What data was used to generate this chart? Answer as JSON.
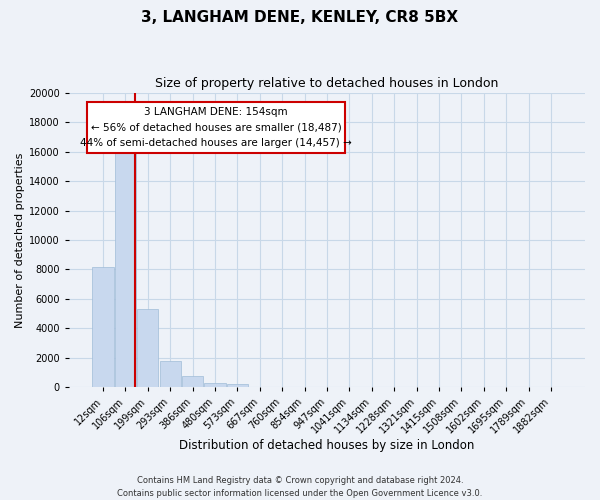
{
  "title": "3, LANGHAM DENE, KENLEY, CR8 5BX",
  "subtitle": "Size of property relative to detached houses in London",
  "xlabel": "Distribution of detached houses by size in London",
  "ylabel": "Number of detached properties",
  "bar_labels": [
    "12sqm",
    "106sqm",
    "199sqm",
    "293sqm",
    "386sqm",
    "480sqm",
    "573sqm",
    "667sqm",
    "760sqm",
    "854sqm",
    "947sqm",
    "1041sqm",
    "1134sqm",
    "1228sqm",
    "1321sqm",
    "1415sqm",
    "1508sqm",
    "1602sqm",
    "1695sqm",
    "1789sqm",
    "1882sqm"
  ],
  "bar_values": [
    8200,
    16600,
    5300,
    1800,
    750,
    280,
    230,
    0,
    0,
    0,
    0,
    0,
    0,
    0,
    0,
    0,
    0,
    0,
    0,
    0,
    0
  ],
  "bar_color": "#c8d8ee",
  "bar_edge_color": "#a0bcd8",
  "vline_color": "#cc0000",
  "vline_x_index": 1.43,
  "annotation_text_line1": "3 LANGHAM DENE: 154sqm",
  "annotation_text_line2": "← 56% of detached houses are smaller (18,487)",
  "annotation_text_line3": "44% of semi-detached houses are larger (14,457) →",
  "ylim": [
    0,
    20000
  ],
  "yticks": [
    0,
    2000,
    4000,
    6000,
    8000,
    10000,
    12000,
    14000,
    16000,
    18000,
    20000
  ],
  "footer_line1": "Contains HM Land Registry data © Crown copyright and database right 2024.",
  "footer_line2": "Contains public sector information licensed under the Open Government Licence v3.0.",
  "title_fontsize": 11,
  "subtitle_fontsize": 9,
  "xlabel_fontsize": 8.5,
  "ylabel_fontsize": 8,
  "tick_fontsize": 7,
  "ann_fontsize": 7.5,
  "footer_fontsize": 6,
  "grid_color": "#c8d8e8",
  "background_color": "#eef2f8"
}
